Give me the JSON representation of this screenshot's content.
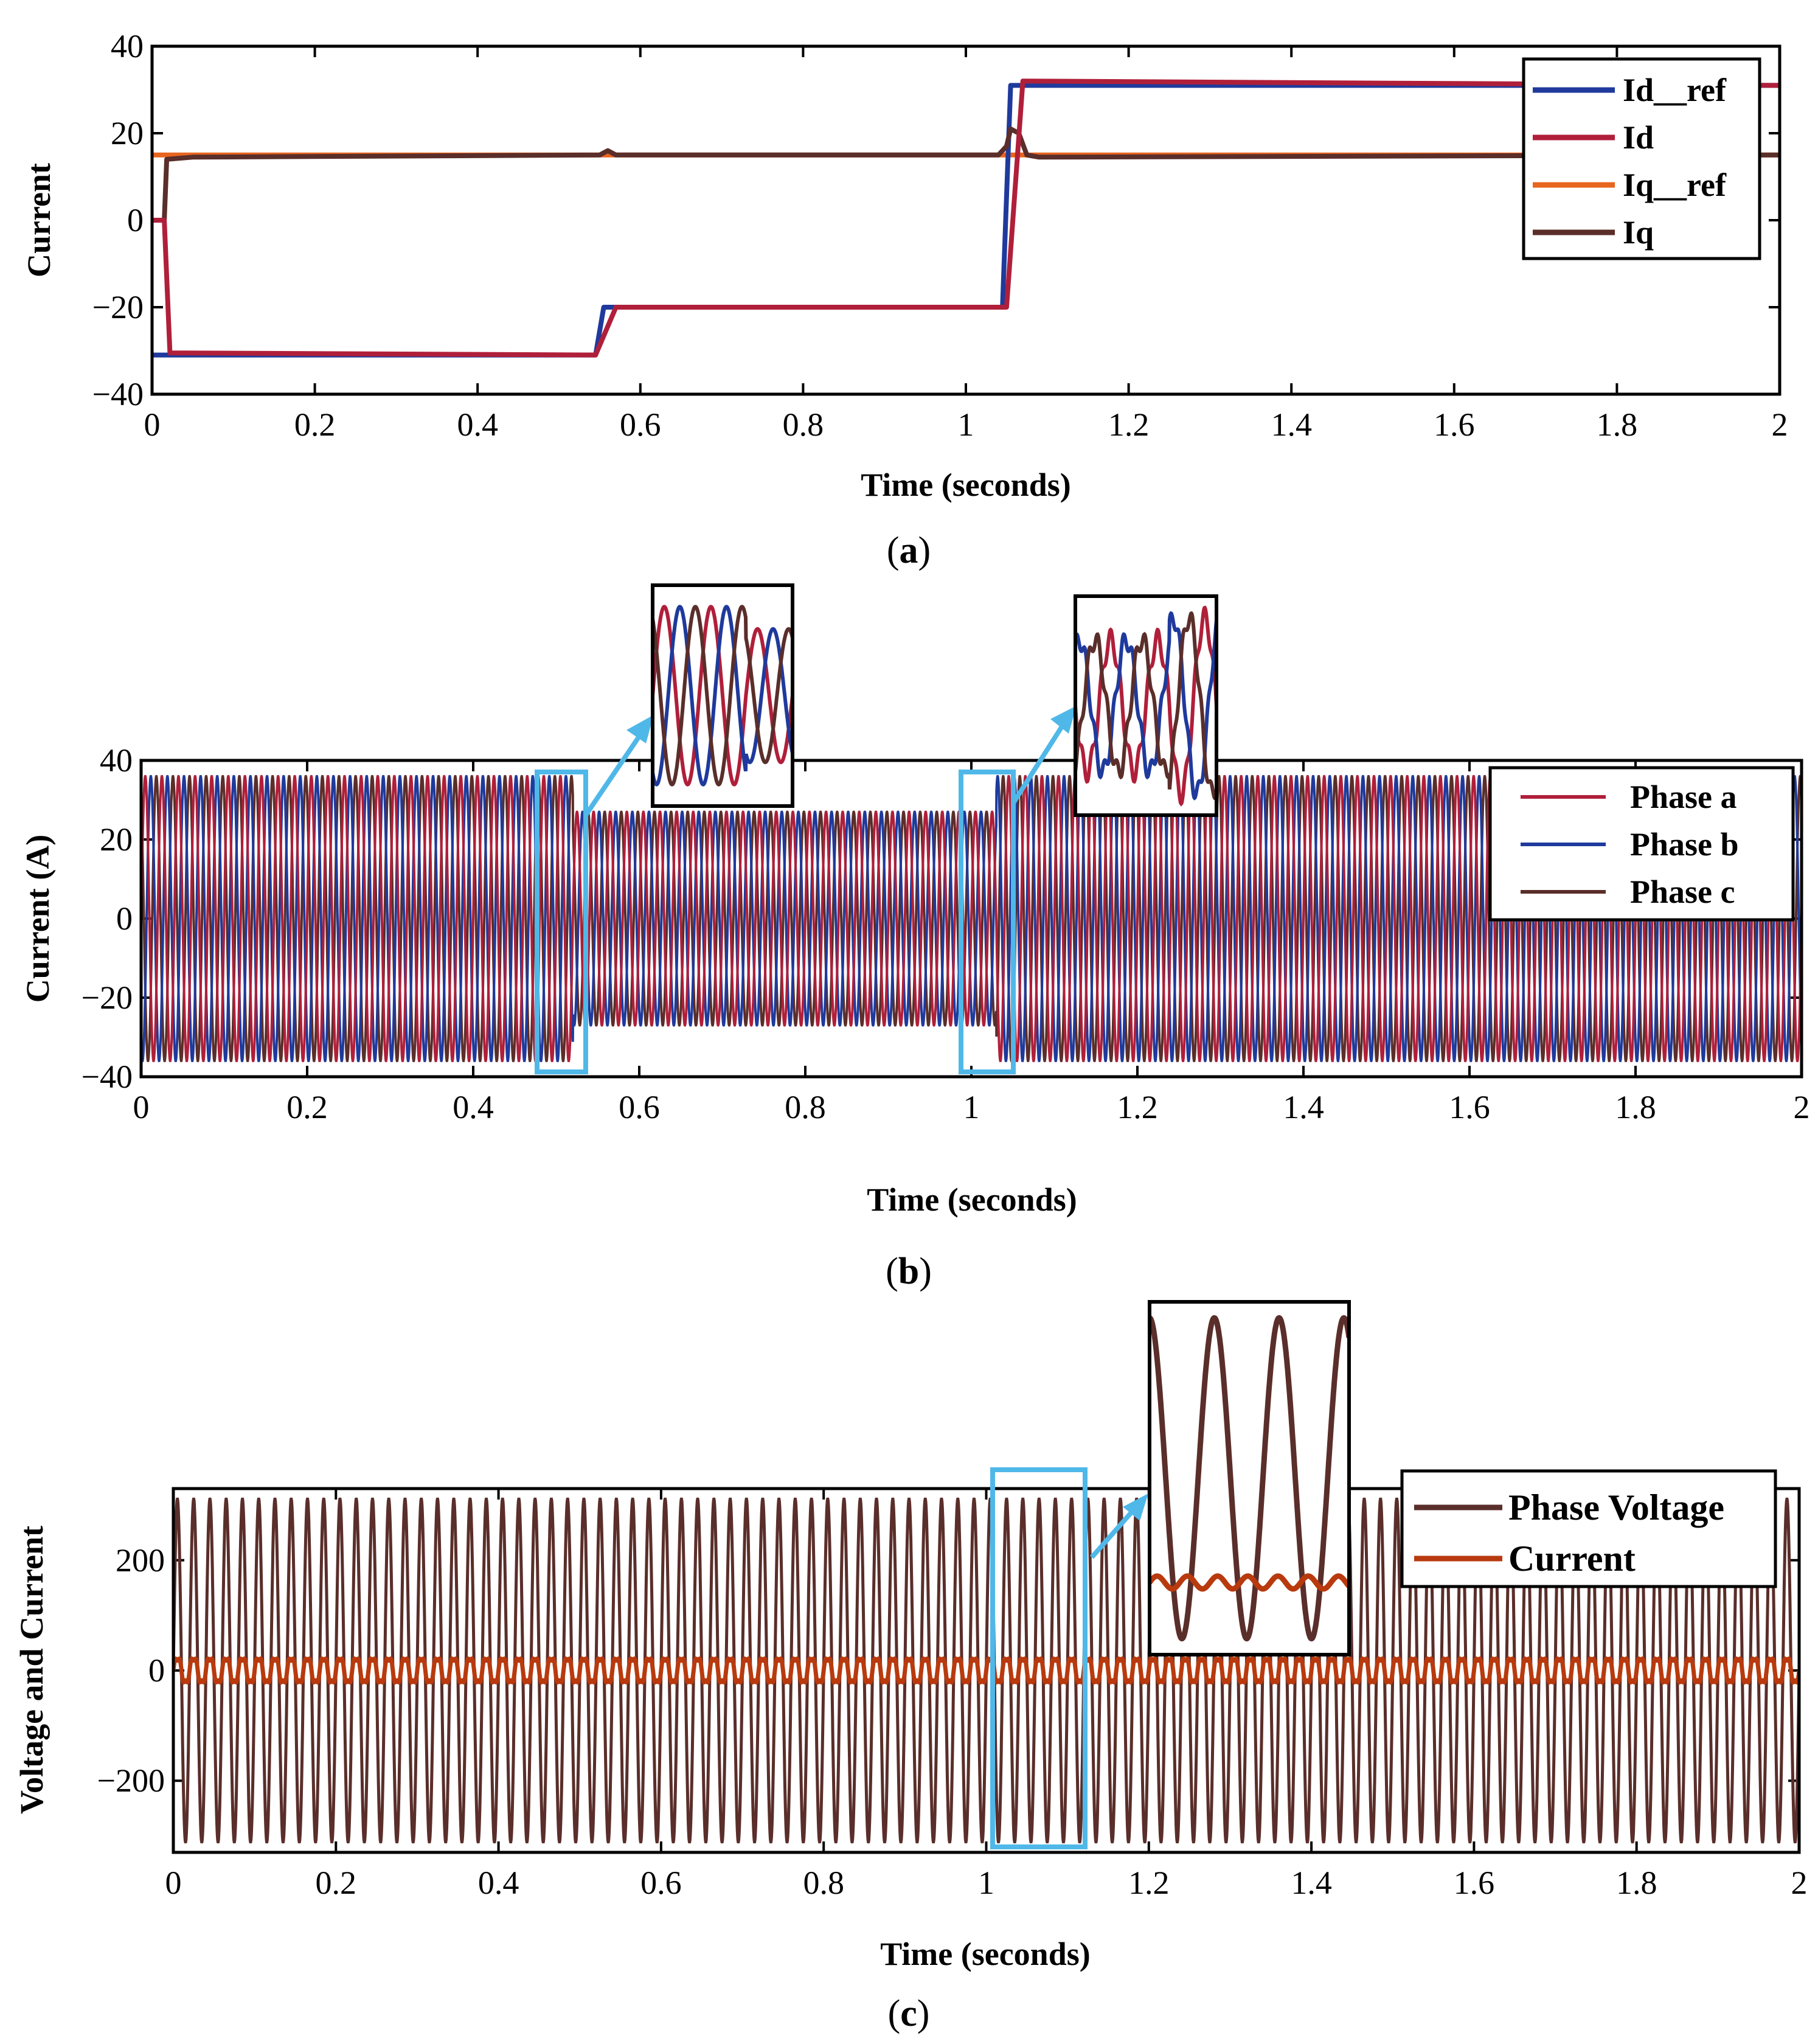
{
  "chart_data": [
    {
      "id": "a",
      "type": "line",
      "caption_letter": "a",
      "xlabel": "Time (seconds)",
      "ylabel": "Current",
      "xlim": [
        0,
        2
      ],
      "ylim": [
        -40,
        40
      ],
      "xticks": [
        0,
        0.2,
        0.4,
        0.6,
        0.8,
        1,
        1.2,
        1.4,
        1.6,
        1.8,
        2
      ],
      "xtick_labels": [
        "0",
        "0.2",
        "0.4",
        "0.6",
        "0.8",
        "1",
        "1.2",
        "1.4",
        "1.6",
        "1.8",
        "2"
      ],
      "yticks": [
        -40,
        -20,
        0,
        20,
        40
      ],
      "ytick_labels": [
        "−40",
        "−20",
        "0",
        "20",
        "40"
      ],
      "legend_position": "top-right",
      "series": [
        {
          "name": "Id__ref",
          "color": "#1f3a9c",
          "x": [
            0,
            0.545,
            0.555,
            1.045,
            1.055,
            2
          ],
          "y": [
            -31,
            -31,
            -20,
            -20,
            31,
            31
          ]
        },
        {
          "name": "Id",
          "color": "#b01f3a",
          "x": [
            0,
            0.015,
            0.022,
            0.545,
            0.57,
            1.05,
            1.07,
            2
          ],
          "y": [
            0,
            0,
            -30.5,
            -31,
            -20,
            -20,
            32,
            31
          ]
        },
        {
          "name": "Iq__ref",
          "color": "#e8651f",
          "x": [
            0,
            2
          ],
          "y": [
            15,
            15
          ]
        },
        {
          "name": "Iq",
          "color": "#5a2e2a",
          "x": [
            0,
            0.015,
            0.018,
            0.05,
            0.55,
            0.56,
            0.57,
            1.04,
            1.05,
            1.055,
            1.065,
            1.075,
            1.09,
            2
          ],
          "y": [
            0,
            0,
            14,
            14.5,
            15,
            16,
            15,
            15,
            17,
            21,
            20,
            15,
            14.5,
            15
          ]
        }
      ]
    },
    {
      "id": "b",
      "type": "line",
      "caption_letter": "b",
      "xlabel": "Time (seconds)",
      "ylabel": "Current (A)",
      "xlim": [
        0,
        2
      ],
      "ylim": [
        -40,
        40
      ],
      "xticks": [
        0,
        0.2,
        0.4,
        0.6,
        0.8,
        1,
        1.2,
        1.4,
        1.6,
        1.8,
        2
      ],
      "xtick_labels": [
        "0",
        "0.2",
        "0.4",
        "0.6",
        "0.8",
        "1",
        "1.2",
        "1.4",
        "1.6",
        "1.8",
        "2"
      ],
      "yticks": [
        -40,
        -20,
        0,
        20,
        40
      ],
      "ytick_labels": [
        "−40",
        "−20",
        "0",
        "20",
        "40"
      ],
      "legend_position": "top-right",
      "frequency_hz": 50,
      "amplitude_segments": [
        {
          "t0": 0.0,
          "t1": 0.52,
          "amplitude": 36
        },
        {
          "t0": 0.52,
          "t1": 1.03,
          "amplitude": 27
        },
        {
          "t0": 1.03,
          "t1": 2.0,
          "amplitude": 36
        }
      ],
      "series": [
        {
          "name": "Phase a",
          "color": "#b01f3a",
          "phase_deg": 0
        },
        {
          "name": "Phase b",
          "color": "#1f3a9c",
          "phase_deg": -120
        },
        {
          "name": "Phase c",
          "color": "#5a2e2a",
          "phase_deg": 120
        }
      ],
      "zoom_regions": [
        {
          "x_range": [
            0.48,
            0.54
          ],
          "y_range": [
            -38,
            38
          ]
        },
        {
          "x_range": [
            0.99,
            1.05
          ],
          "y_range": [
            -38,
            38
          ]
        }
      ]
    },
    {
      "id": "c",
      "type": "line",
      "caption_letter": "c",
      "xlabel": "Time (seconds)",
      "ylabel": "Voltage and Current",
      "xlim": [
        0,
        2
      ],
      "ylim": [
        -330,
        330
      ],
      "xticks": [
        0,
        0.2,
        0.4,
        0.6,
        0.8,
        1,
        1.2,
        1.4,
        1.6,
        1.8,
        2
      ],
      "xtick_labels": [
        "0",
        "0.2",
        "0.4",
        "0.6",
        "0.8",
        "1",
        "1.2",
        "1.4",
        "1.6",
        "1.8",
        "2"
      ],
      "yticks": [
        -200,
        0,
        200
      ],
      "ytick_labels": [
        "−200",
        "0",
        "200"
      ],
      "legend_position": "top-right",
      "frequency_hz": 50,
      "series": [
        {
          "name": "Phase Voltage",
          "color": "#5a2e2a",
          "amplitude": 311
        },
        {
          "name": "Current",
          "color": "#b83a0e",
          "amplitude": 30
        }
      ],
      "zoom_regions": [
        {
          "x_range": [
            1.01,
            1.12
          ],
          "y_range": [
            -330,
            330
          ]
        }
      ]
    }
  ]
}
